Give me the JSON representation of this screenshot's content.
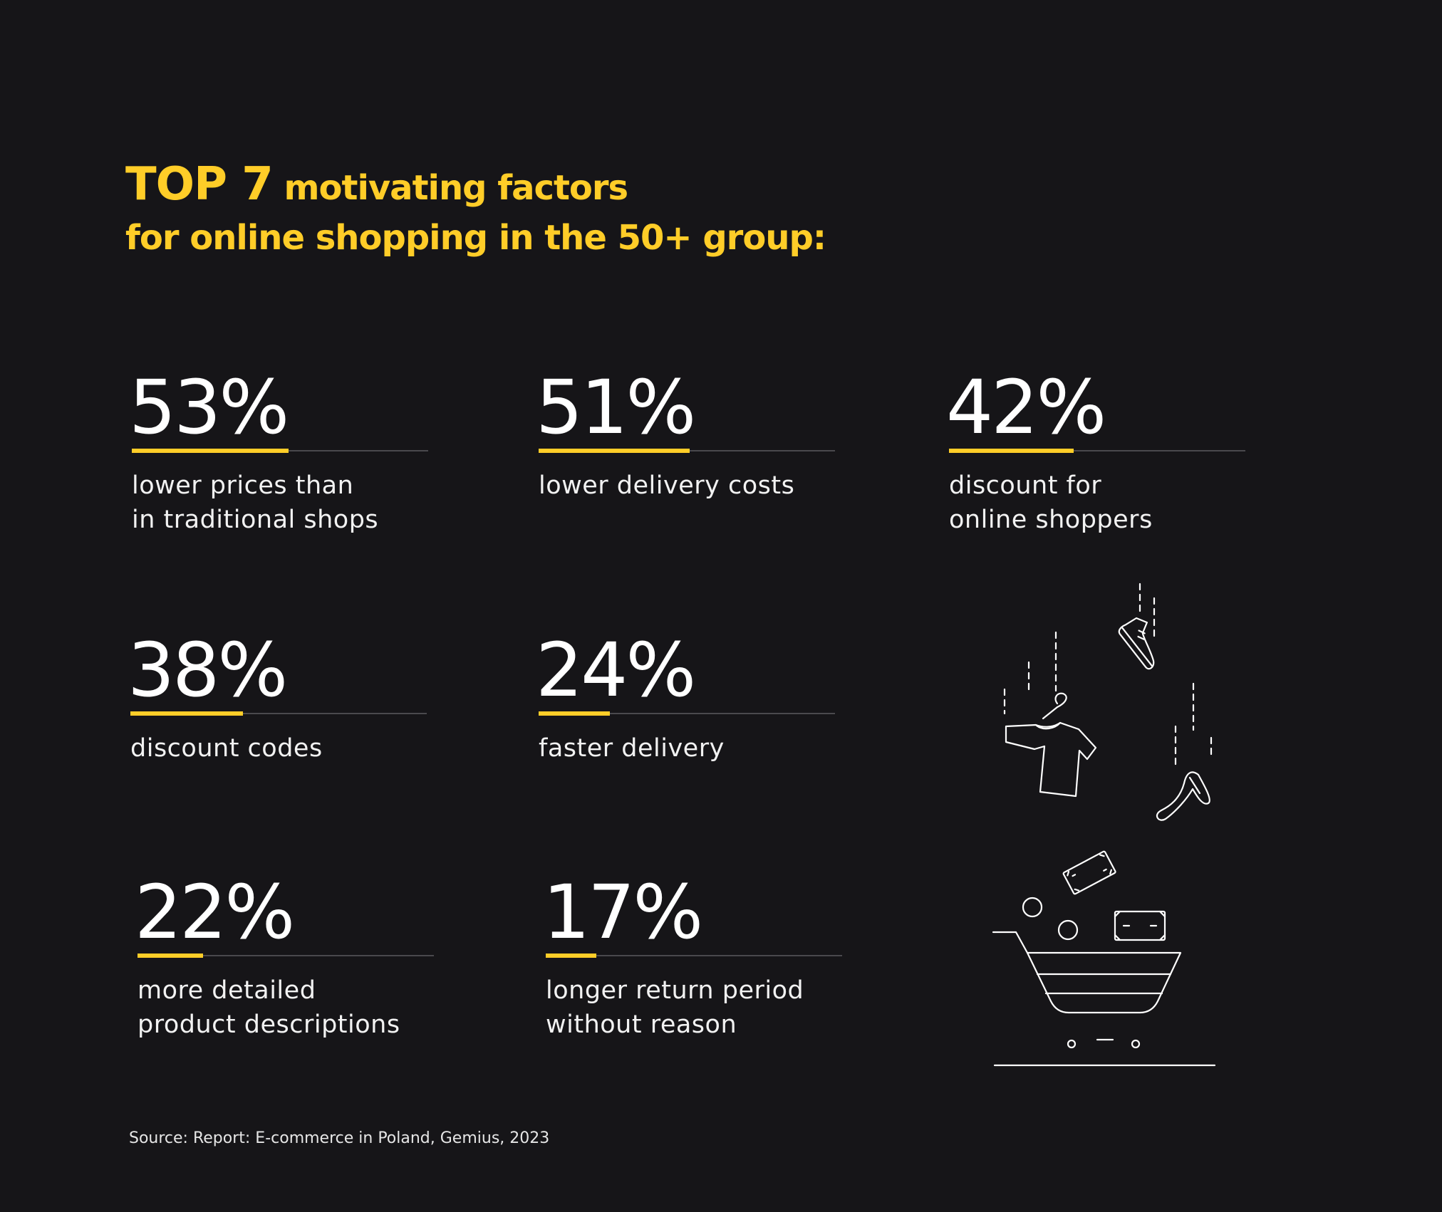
{
  "title": {
    "line1_strong": "TOP 7",
    "line1_rest": "motivating factors",
    "line2": "for online shopping in the 50+ group:"
  },
  "chart_data": {
    "type": "bar",
    "max": 100,
    "items": [
      {
        "value_label": "53%",
        "value": 53,
        "label": "lower prices than\nin traditional shops"
      },
      {
        "value_label": "51%",
        "value": 51,
        "label": "lower delivery costs"
      },
      {
        "value_label": "42%",
        "value": 42,
        "label": "discount for\nonline shoppers"
      },
      {
        "value_label": "38%",
        "value": 38,
        "label": "discount codes"
      },
      {
        "value_label": "24%",
        "value": 24,
        "label": "faster delivery"
      },
      {
        "value_label": "22%",
        "value": 22,
        "label": "more detailed\nproduct descriptions"
      },
      {
        "value_label": "17%",
        "value": 17,
        "label": "longer return period\nwithout reason"
      }
    ]
  },
  "source": "Source: Report: E-commerce in Poland, Gemius, 2023",
  "colors": {
    "background": "#161518",
    "accent": "#ffcd28",
    "track": "#4a494d",
    "text": "#ffffff"
  },
  "illustration": {
    "icons": [
      "sneaker-icon",
      "tshirt-icon",
      "high-heel-icon",
      "banknote-icon",
      "banknote-icon",
      "coin-icon",
      "coin-icon",
      "shopping-cart-icon"
    ]
  }
}
